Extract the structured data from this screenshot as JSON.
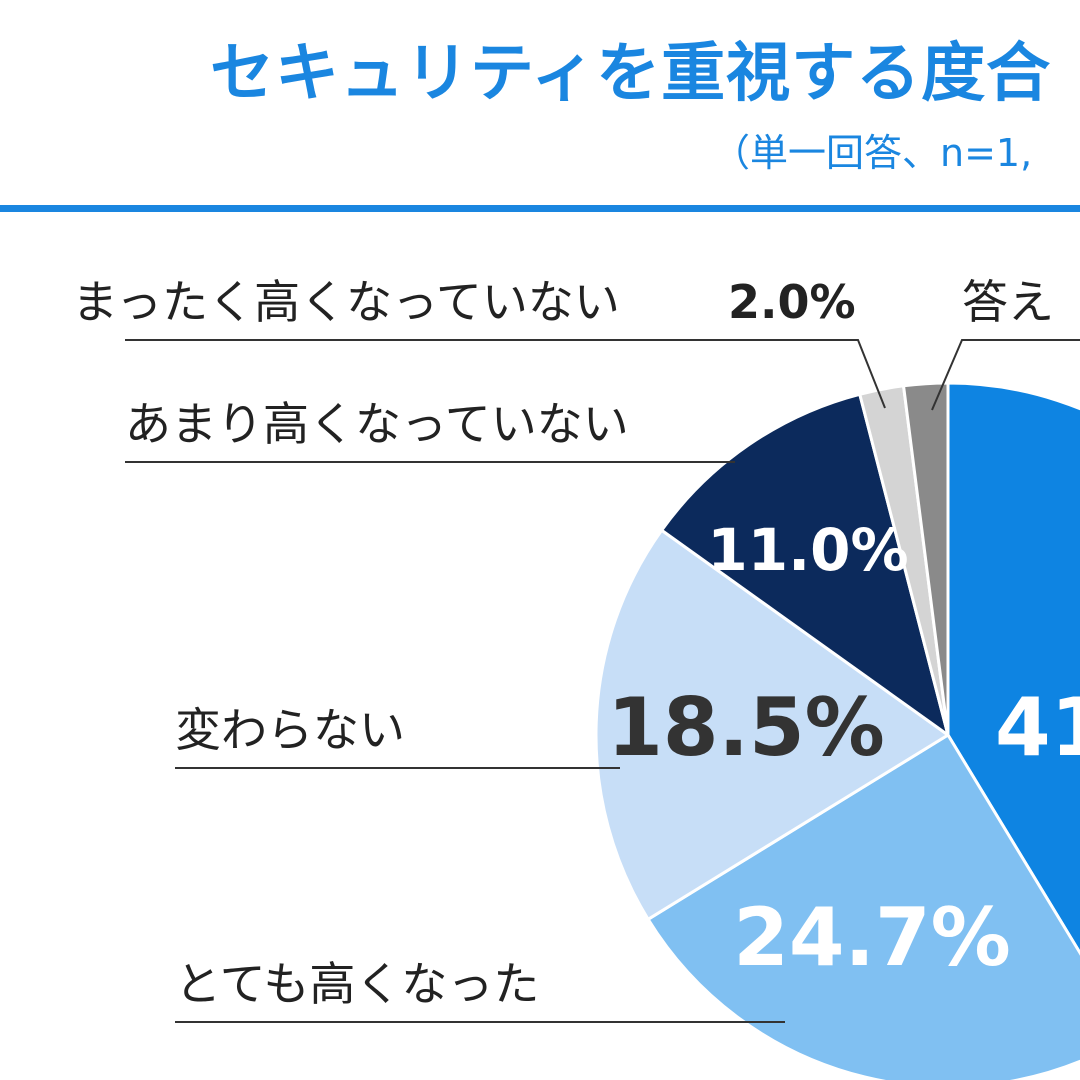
{
  "header": {
    "title": "セキュリティを重視する度合",
    "subtitle": "（単一回答、n=1,"
  },
  "chart_data": {
    "type": "pie",
    "title": "セキュリティを重視する度合",
    "subtitle": "（単一回答、n=1,",
    "slices": [
      {
        "label": "",
        "value": 41,
        "value_label": "41",
        "color": "#0e84e2",
        "text_color": "#ffffff"
      },
      {
        "label": "とても高くなった",
        "value": 24.7,
        "value_label": "24.7%",
        "color": "#80c0f2",
        "text_color": "#ffffff"
      },
      {
        "label": "変わらない",
        "value": 18.5,
        "value_label": "18.5%",
        "color": "#c7def7",
        "text_color": "#333333"
      },
      {
        "label": "あまり高くなっていない",
        "value": 11.0,
        "value_label": "11.0%",
        "color": "#0c2a5c",
        "text_color": "#ffffff"
      },
      {
        "label": "まったく高くなっていない",
        "value": 2.0,
        "value_label": "2.0%",
        "color": "#d4d4d4",
        "text_color": "#222222"
      },
      {
        "label": "答え",
        "value": 2.0,
        "value_label": "",
        "color": "#8a8a8a",
        "text_color": "#222222"
      }
    ]
  }
}
